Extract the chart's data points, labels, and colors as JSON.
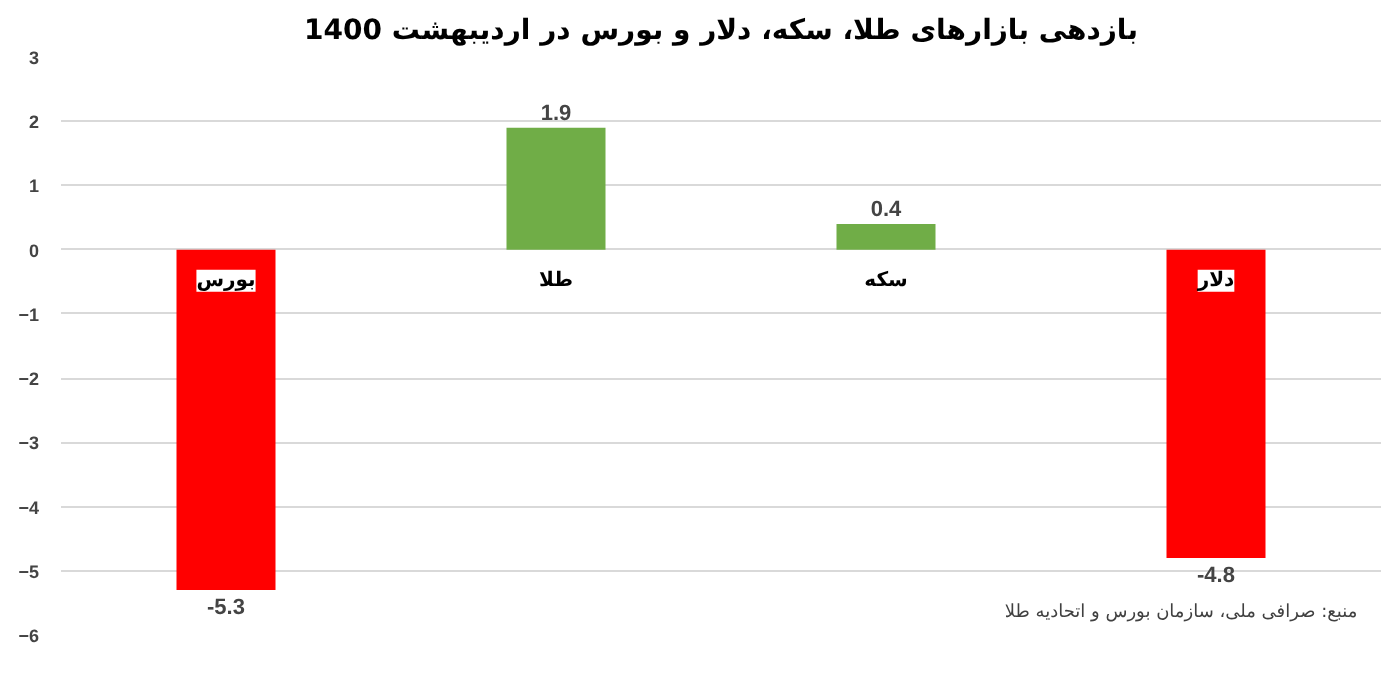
{
  "chart_data": {
    "type": "bar",
    "title": "بازدهی بازارهای طلا، سکه، دلار و بورس در اردیبهشت 1400",
    "categories": [
      "بورس",
      "طلا",
      "سکه",
      "دلار"
    ],
    "values": [
      -5.3,
      1.9,
      0.4,
      -4.8
    ],
    "colors": [
      "#ff0000",
      "#70ad47",
      "#70ad47",
      "#ff0000"
    ],
    "ylim": [
      -6,
      3
    ],
    "yticks": [
      -6,
      -5,
      -4,
      -3,
      -2,
      -1,
      0,
      1,
      2,
      3
    ],
    "grid": "y",
    "data_labels": true,
    "annotations": [
      "منبع: صرافی ملی، سازمان بورس و اتحادیه طلا"
    ]
  }
}
